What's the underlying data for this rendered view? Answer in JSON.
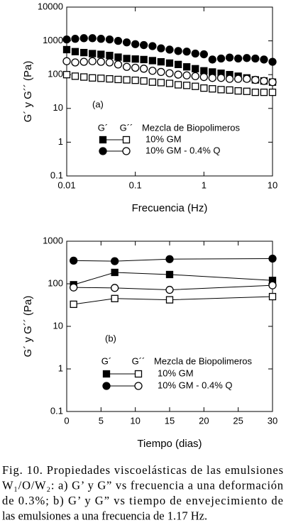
{
  "chart_data": [
    {
      "type": "scatter",
      "annotation": "(a)",
      "x_label": "Frecuencia (Hz)",
      "y_label": "G´ y G´´ (Pa)",
      "xlog": true,
      "ylog": true,
      "lines": false,
      "xlim": [
        0.01,
        10
      ],
      "xticks": [
        0.01,
        0.1,
        1,
        10
      ],
      "ylim": [
        0.1,
        10000
      ],
      "yticks": [
        0.1,
        1,
        10,
        100,
        1000,
        10000
      ],
      "legend": {
        "title": "Mezcla de Biopolimeros",
        "columns": [
          "G´",
          "G´´"
        ]
      },
      "x": [
        0.01,
        0.0133,
        0.0178,
        0.0237,
        0.0316,
        0.0422,
        0.0562,
        0.075,
        0.1,
        0.133,
        0.178,
        0.237,
        0.316,
        0.422,
        0.562,
        0.75,
        1,
        1.33,
        1.78,
        2.37,
        3.16,
        4.22,
        5.62,
        7.5,
        10
      ],
      "series": [
        {
          "name": "10% GM",
          "marker": "square",
          "color": "#000",
          "g1": [
            550,
            480,
            450,
            420,
            400,
            370,
            330,
            300,
            290,
            280,
            260,
            240,
            220,
            200,
            170,
            150,
            130,
            120,
            110,
            100,
            90,
            80,
            70,
            65,
            60
          ],
          "g2": [
            100,
            90,
            85,
            80,
            78,
            75,
            72,
            70,
            68,
            65,
            60,
            58,
            55,
            50,
            48,
            45,
            40,
            38,
            36,
            35,
            33,
            32,
            30,
            30,
            30
          ]
        },
        {
          "name": "10% GM - 0.4% Q",
          "marker": "circle",
          "color": "#000",
          "g1": [
            1100,
            1150,
            1200,
            1200,
            1150,
            1100,
            1000,
            900,
            800,
            750,
            700,
            600,
            550,
            500,
            480,
            420,
            400,
            280,
            300,
            320,
            300,
            310,
            300,
            280,
            240
          ],
          "g2": [
            250,
            230,
            240,
            250,
            240,
            230,
            200,
            170,
            160,
            150,
            130,
            120,
            110,
            100,
            95,
            90,
            85,
            80,
            80,
            75,
            75,
            75,
            70,
            65,
            60
          ]
        }
      ]
    },
    {
      "type": "line",
      "annotation": "(b)",
      "x_label": "Tiempo  (dias)",
      "y_label": "G´ y G´´ (Pa)",
      "xlog": false,
      "ylog": true,
      "lines": true,
      "xlim": [
        0,
        30
      ],
      "xticks": [
        0,
        5,
        10,
        15,
        20,
        25,
        30
      ],
      "ylim": [
        0.1,
        1000
      ],
      "yticks": [
        0.1,
        1,
        10,
        100,
        1000
      ],
      "legend": {
        "title": "Mezcla de Biopolimeros",
        "columns": [
          "G´",
          "G´´"
        ]
      },
      "x": [
        1,
        7,
        15,
        30
      ],
      "series": [
        {
          "name": "10% GM",
          "marker": "square",
          "color": "#000",
          "g1": [
            95,
            185,
            165,
            120
          ],
          "g2": [
            33,
            45,
            42,
            50
          ]
        },
        {
          "name": "10% GM - 0.4% Q",
          "marker": "circle",
          "color": "#000",
          "g1": [
            350,
            340,
            380,
            390
          ],
          "g2": [
            82,
            80,
            72,
            92
          ]
        }
      ]
    }
  ],
  "caption": [
    "Fig. 10. Propiedades viscoelásticas de las emulsiones",
    "W₁/O/W₂: a) G’ y G” vs frecuencia a una deformación",
    "de 0.3%; b) G’ y G” vs tiempo de envejecimiento de",
    "las emulsiones a una frecuencia de 1.17 Hz."
  ]
}
